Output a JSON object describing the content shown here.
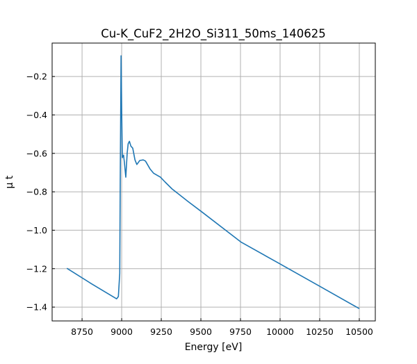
{
  "chart_data": {
    "type": "line",
    "title": "Cu-K_CuF2_2H2O_Si311_50ms_140625",
    "xlabel": "Energy [eV]",
    "ylabel": "μ t",
    "xlim": [
      8561,
      10601
    ],
    "ylim": [
      -1.472,
      -0.026
    ],
    "xticks": [
      8750,
      9000,
      9250,
      9500,
      9750,
      10000,
      10250,
      10500
    ],
    "xtick_labels": [
      "8750",
      "9000",
      "9250",
      "9500",
      "9750",
      "10000",
      "10250",
      "10500"
    ],
    "yticks": [
      -0.2,
      -0.4,
      -0.6,
      -0.8,
      -1.0,
      -1.2,
      -1.4
    ],
    "ytick_labels": [
      "−0.2",
      "−0.4",
      "−0.6",
      "−0.8",
      "−1.0",
      "−1.2",
      "−1.4"
    ],
    "grid": true,
    "series": [
      {
        "name": "mu_t",
        "color": "#1f77b4",
        "x": [
          8654,
          8808,
          8968,
          8979,
          8988,
          8991,
          8996,
          9000,
          9004,
          9012,
          9017,
          9026,
          9035,
          9041,
          9049,
          9058,
          9070,
          9084,
          9096,
          9114,
          9136,
          9150,
          9179,
          9201,
          9245,
          9274,
          9318,
          9420,
          9507,
          9752,
          10001,
          10251,
          10500
        ],
        "y": [
          -1.198,
          -1.278,
          -1.357,
          -1.345,
          -1.224,
          -0.743,
          -0.092,
          -0.381,
          -0.622,
          -0.609,
          -0.645,
          -0.724,
          -0.598,
          -0.55,
          -0.537,
          -0.562,
          -0.573,
          -0.634,
          -0.658,
          -0.637,
          -0.634,
          -0.64,
          -0.681,
          -0.703,
          -0.724,
          -0.749,
          -0.785,
          -0.851,
          -0.905,
          -1.061,
          -1.176,
          -1.292,
          -1.408
        ]
      }
    ]
  }
}
